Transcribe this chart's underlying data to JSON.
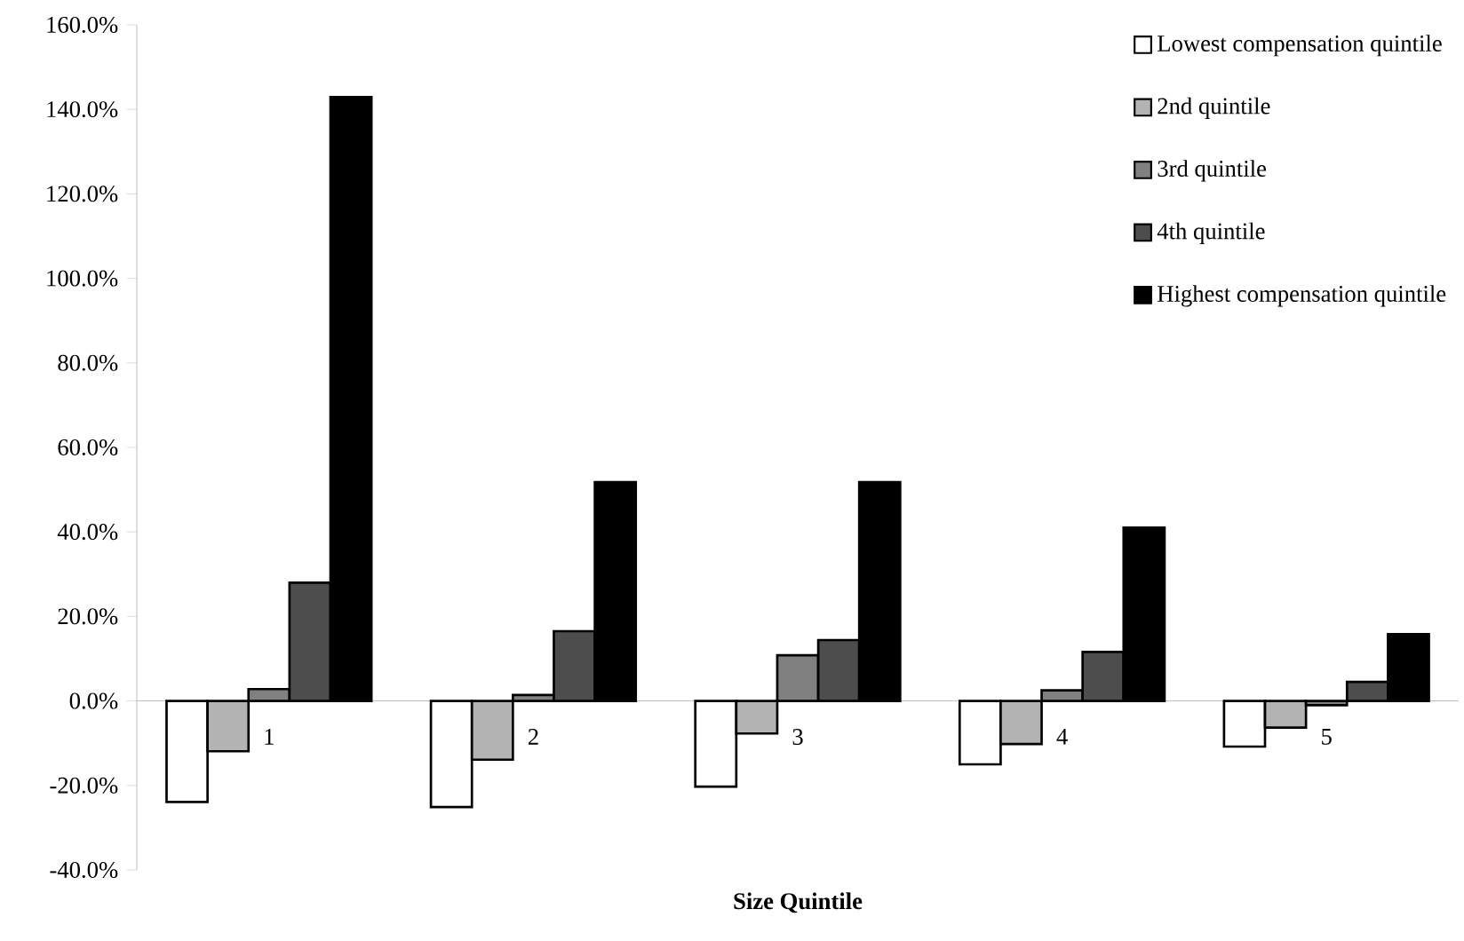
{
  "chart_data": {
    "type": "bar",
    "xlabel": "Size Quintile",
    "categories": [
      "1",
      "2",
      "3",
      "4",
      "5"
    ],
    "series": [
      {
        "name": "Lowest compensation quintile",
        "color": "#ffffff",
        "values": [
          -23.9,
          -25.1,
          -20.3,
          -15.0,
          -10.8
        ]
      },
      {
        "name": "2nd quintile",
        "color": "#b3b3b3",
        "values": [
          -11.9,
          -13.9,
          -7.7,
          -10.2,
          -6.3
        ]
      },
      {
        "name": "3rd quintile",
        "color": "#808080",
        "values": [
          2.8,
          1.4,
          10.8,
          2.5,
          -1.0
        ]
      },
      {
        "name": "4th quintile",
        "color": "#4d4d4d",
        "values": [
          28.0,
          16.5,
          14.4,
          11.6,
          4.5
        ]
      },
      {
        "name": "Highest compensation quintile",
        "color": "#000000",
        "values": [
          142.9,
          51.8,
          51.8,
          41.0,
          15.8
        ]
      }
    ],
    "ylim": [
      -40,
      160
    ],
    "yticks": [
      {
        "value": -40,
        "label": "-40.0%"
      },
      {
        "value": -20,
        "label": "-20.0%"
      },
      {
        "value": 0,
        "label": "0.0%"
      },
      {
        "value": 20,
        "label": "20.0%"
      },
      {
        "value": 40,
        "label": "40.0%"
      },
      {
        "value": 60,
        "label": "60.0%"
      },
      {
        "value": 80,
        "label": "80.0%"
      },
      {
        "value": 100,
        "label": "100.0%"
      },
      {
        "value": 120,
        "label": "120.0%"
      },
      {
        "value": 140,
        "label": "140.0%"
      },
      {
        "value": 160,
        "label": "160.0%"
      }
    ],
    "legend": "top right",
    "grid": false
  }
}
